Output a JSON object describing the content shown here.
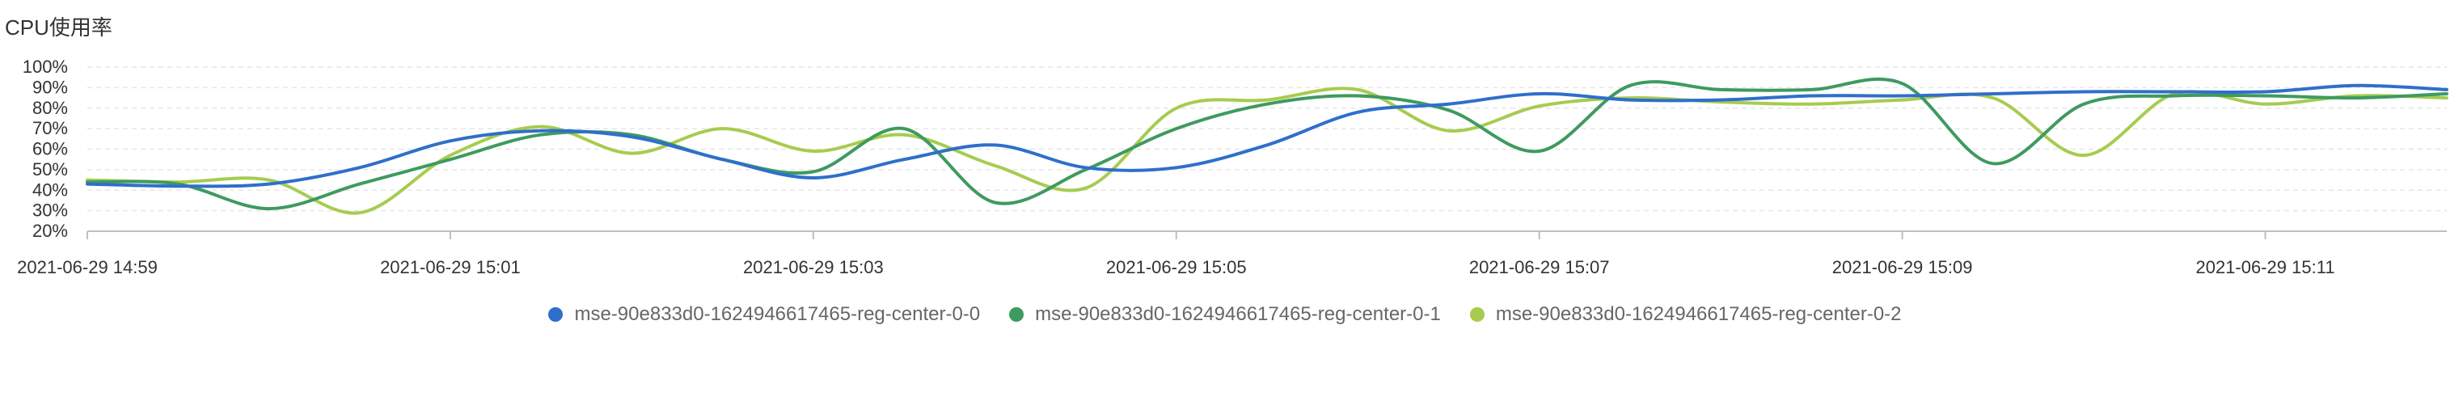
{
  "chart_data": {
    "type": "line",
    "title": "CPU使用率",
    "xlabel": "",
    "ylabel": "",
    "x_tick_labels": [
      "2021-06-29 14:59",
      "2021-06-29 15:01",
      "2021-06-29 15:03",
      "2021-06-29 15:05",
      "2021-06-29 15:07",
      "2021-06-29 15:09",
      "2021-06-29 15:11"
    ],
    "x_ticks_minutes": [
      0,
      2,
      4,
      6,
      8,
      10,
      12
    ],
    "x_range_minutes": [
      0,
      13
    ],
    "y_tick_labels": [
      "100%",
      "90%",
      "80%",
      "70%",
      "60%",
      "50%",
      "40%",
      "30%",
      "20%"
    ],
    "ylim": [
      20,
      100
    ],
    "grid": "horizontal-dashed",
    "legend_position": "bottom",
    "series": [
      {
        "name": "mse-90e833d0-1624946617465-reg-center-0-0",
        "color": "#2f6fcb",
        "x": [
          0,
          0.5,
          1,
          1.5,
          2,
          2.5,
          3,
          3.5,
          4,
          4.5,
          5,
          5.5,
          6,
          6.5,
          7,
          7.5,
          8,
          8.5,
          9,
          9.5,
          10,
          10.5,
          11,
          11.5,
          12,
          12.5,
          13
        ],
        "values": [
          43,
          42,
          43,
          51,
          64,
          69,
          66,
          55,
          46,
          55,
          62,
          51,
          51,
          62,
          78,
          82,
          87,
          84,
          84,
          86,
          86,
          87,
          88,
          88,
          88,
          91,
          89
        ]
      },
      {
        "name": "mse-90e833d0-1624946617465-reg-center-0-1",
        "color": "#3f9a5f",
        "x": [
          0,
          0.5,
          1,
          1.5,
          2,
          2.5,
          3,
          3.5,
          4,
          4.5,
          5,
          5.5,
          6,
          6.5,
          7,
          7.5,
          8,
          8.5,
          9,
          9.5,
          10,
          10.5,
          11,
          11.5,
          12,
          12.5,
          13
        ],
        "values": [
          44,
          43,
          31,
          43,
          55,
          67,
          67,
          55,
          49,
          70,
          34,
          50,
          70,
          82,
          86,
          79,
          59,
          91,
          89,
          89,
          92,
          53,
          82,
          86,
          86,
          85,
          87
        ]
      },
      {
        "name": "mse-90e833d0-1624946617465-reg-center-0-2",
        "color": "#a6cc4f",
        "x": [
          0,
          0.5,
          1,
          1.5,
          2,
          2.5,
          3,
          3.5,
          4,
          4.5,
          5,
          5.5,
          6,
          6.5,
          7,
          7.5,
          8,
          8.5,
          9,
          9.5,
          10,
          10.5,
          11,
          11.5,
          12,
          12.5,
          13
        ],
        "values": [
          45,
          44,
          45,
          29,
          57,
          71,
          58,
          70,
          59,
          67,
          52,
          41,
          80,
          84,
          89,
          69,
          81,
          85,
          83,
          82,
          84,
          85,
          57,
          87,
          82,
          86,
          85
        ]
      }
    ]
  }
}
